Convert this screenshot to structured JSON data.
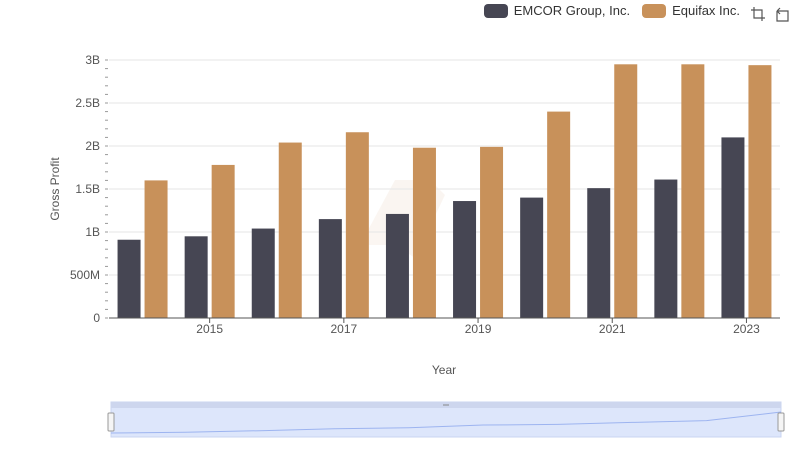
{
  "toolbar": {
    "zoom_icon": "zoom-select-icon",
    "reset_icon": "zoom-reset-icon"
  },
  "colors": {
    "series_0": "#464653",
    "series_1": "#c8915a",
    "grid": "#e6e6e6",
    "navigator_fill": "#dde6fb",
    "navigator_line": "#9db4f0"
  },
  "chart_data": {
    "type": "bar",
    "title": "",
    "xlabel": "Year",
    "ylabel": "Gross Profit",
    "x": [
      2014,
      2015,
      2016,
      2017,
      2018,
      2019,
      2020,
      2021,
      2022,
      2023
    ],
    "xtick_labels": [
      "2015",
      "2017",
      "2019",
      "2021",
      "2023"
    ],
    "xtick_values": [
      2015,
      2017,
      2019,
      2021,
      2023
    ],
    "ylim": [
      0,
      3000000000
    ],
    "ytick_values": [
      0,
      500000000,
      1000000000,
      1500000000,
      2000000000,
      2500000000,
      3000000000
    ],
    "ytick_labels": [
      "0",
      "500M",
      "1B",
      "1.5B",
      "2B",
      "2.5B",
      "3B"
    ],
    "grid": true,
    "legend_position": "top-right",
    "series": [
      {
        "name": "EMCOR Group, Inc.",
        "values": [
          910000000,
          950000000,
          1040000000,
          1150000000,
          1210000000,
          1360000000,
          1400000000,
          1510000000,
          1610000000,
          2100000000
        ]
      },
      {
        "name": "Equifax Inc.",
        "values": [
          1600000000,
          1780000000,
          2040000000,
          2160000000,
          1980000000,
          1990000000,
          2400000000,
          2950000000,
          2950000000,
          2940000000
        ]
      }
    ]
  }
}
